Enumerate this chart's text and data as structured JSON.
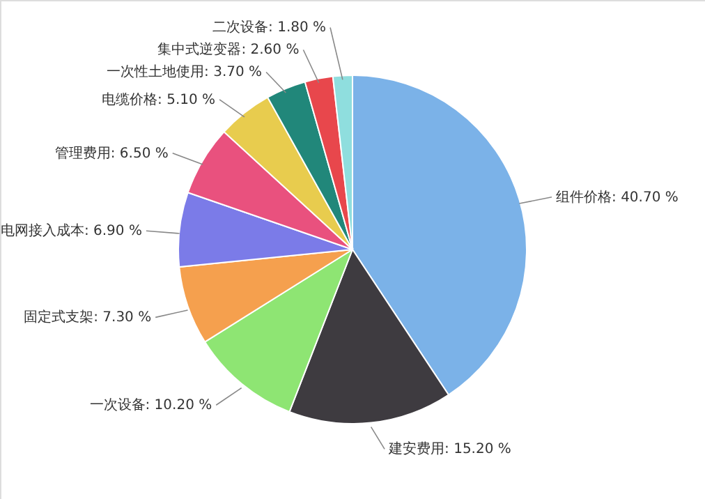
{
  "chart_data": {
    "type": "pie",
    "categories": [
      "组件价格",
      "建安费用",
      "一次设备",
      "固定式支架",
      "电网接入成本",
      "管理费用",
      "电缆价格",
      "一次性土地使用",
      "集中式逆变器",
      "二次设备"
    ],
    "values": [
      40.7,
      15.2,
      10.2,
      7.3,
      6.9,
      6.5,
      5.1,
      3.7,
      2.6,
      1.8
    ],
    "value_labels": [
      "40.70 %",
      "15.20 %",
      "10.20 %",
      "7.30 %",
      "6.90 %",
      "6.50 %",
      "5.10 %",
      "3.70 %",
      "2.60 %",
      "1.80 %"
    ],
    "colors": [
      "#7bb2e8",
      "#3e3b40",
      "#8ee573",
      "#f5a04e",
      "#7b7be8",
      "#e9517e",
      "#e8cc4e",
      "#21877a",
      "#e8474c",
      "#8fdede"
    ],
    "legend": false
  }
}
